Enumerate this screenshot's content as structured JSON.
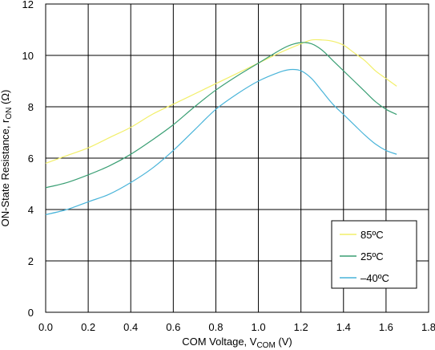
{
  "chart_data": {
    "type": "line",
    "xlabel": {
      "main": "COM Voltage, V",
      "sub": "COM",
      "tail": " (V)"
    },
    "ylabel": {
      "main": "ON-State Resistance, r",
      "sub": "ON",
      "tail": " (Ω)"
    },
    "xlim": [
      0,
      1.8
    ],
    "ylim": [
      0,
      12
    ],
    "x_ticks": [
      "0.0",
      "0.2",
      "0.4",
      "0.6",
      "0.8",
      "1.0",
      "1.2",
      "1.4",
      "1.6",
      "1.8"
    ],
    "y_ticks": [
      "0",
      "2",
      "4",
      "6",
      "8",
      "10",
      "12"
    ],
    "grid": true,
    "legend_position": "lower-right",
    "series": [
      {
        "name": "85ºC",
        "color": "#f2ef6a",
        "x": [
          0.0,
          0.1,
          0.2,
          0.3,
          0.4,
          0.5,
          0.6,
          0.7,
          0.8,
          0.9,
          1.0,
          1.1,
          1.2,
          1.25,
          1.3,
          1.35,
          1.4,
          1.45,
          1.5,
          1.55,
          1.6,
          1.65
        ],
        "y": [
          5.8,
          6.1,
          6.4,
          6.8,
          7.2,
          7.7,
          8.1,
          8.5,
          8.9,
          9.3,
          9.7,
          10.1,
          10.45,
          10.6,
          10.6,
          10.55,
          10.4,
          10.1,
          9.8,
          9.4,
          9.1,
          8.8
        ]
      },
      {
        "name": "25ºC",
        "color": "#3a9f74",
        "x": [
          0.0,
          0.1,
          0.2,
          0.3,
          0.4,
          0.5,
          0.6,
          0.7,
          0.8,
          0.9,
          1.0,
          1.1,
          1.15,
          1.2,
          1.25,
          1.3,
          1.35,
          1.4,
          1.45,
          1.5,
          1.55,
          1.6,
          1.65
        ],
        "y": [
          4.85,
          5.05,
          5.35,
          5.7,
          6.15,
          6.7,
          7.3,
          8.0,
          8.65,
          9.2,
          9.7,
          10.2,
          10.4,
          10.5,
          10.45,
          10.2,
          9.8,
          9.4,
          9.0,
          8.6,
          8.2,
          7.9,
          7.7
        ]
      },
      {
        "name": "–40ºC",
        "color": "#49b4d9",
        "x": [
          0.0,
          0.1,
          0.2,
          0.3,
          0.4,
          0.5,
          0.6,
          0.7,
          0.8,
          0.9,
          1.0,
          1.1,
          1.15,
          1.2,
          1.25,
          1.3,
          1.35,
          1.4,
          1.45,
          1.5,
          1.55,
          1.6,
          1.65
        ],
        "y": [
          3.8,
          4.0,
          4.3,
          4.6,
          5.05,
          5.6,
          6.3,
          7.1,
          7.9,
          8.5,
          9.0,
          9.35,
          9.45,
          9.4,
          9.1,
          8.6,
          8.1,
          7.7,
          7.3,
          6.9,
          6.55,
          6.3,
          6.15
        ]
      }
    ]
  }
}
